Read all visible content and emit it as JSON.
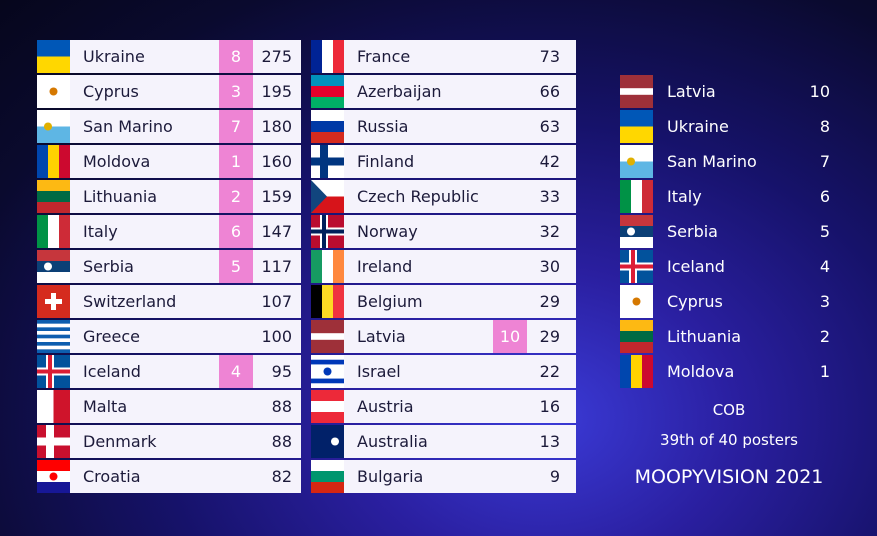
{
  "scoreboard": {
    "left": [
      {
        "country": "Ukraine",
        "points": 8,
        "total": 275
      },
      {
        "country": "Cyprus",
        "points": 3,
        "total": 195
      },
      {
        "country": "San Marino",
        "points": 7,
        "total": 180
      },
      {
        "country": "Moldova",
        "points": 1,
        "total": 160
      },
      {
        "country": "Lithuania",
        "points": 2,
        "total": 159
      },
      {
        "country": "Italy",
        "points": 6,
        "total": 147
      },
      {
        "country": "Serbia",
        "points": 5,
        "total": 117
      },
      {
        "country": "Switzerland",
        "total": 107
      },
      {
        "country": "Greece",
        "total": 100
      },
      {
        "country": "Iceland",
        "points": 4,
        "total": 95
      },
      {
        "country": "Malta",
        "total": 88
      },
      {
        "country": "Denmark",
        "total": 88
      },
      {
        "country": "Croatia",
        "total": 82
      }
    ],
    "middle": [
      {
        "country": "France",
        "total": 73
      },
      {
        "country": "Azerbaijan",
        "total": 66
      },
      {
        "country": "Russia",
        "total": 63
      },
      {
        "country": "Finland",
        "total": 42
      },
      {
        "country": "Czech Republic",
        "total": 33
      },
      {
        "country": "Norway",
        "total": 32
      },
      {
        "country": "Ireland",
        "total": 30
      },
      {
        "country": "Belgium",
        "total": 29
      },
      {
        "country": "Latvia",
        "points": 10,
        "total": 29
      },
      {
        "country": "Israel",
        "total": 22
      },
      {
        "country": "Austria",
        "total": 16
      },
      {
        "country": "Australia",
        "total": 13
      },
      {
        "country": "Bulgaria",
        "total": 9
      }
    ]
  },
  "votes": {
    "given": [
      {
        "country": "Latvia",
        "points": 10
      },
      {
        "country": "Ukraine",
        "points": 8
      },
      {
        "country": "San Marino",
        "points": 7
      },
      {
        "country": "Italy",
        "points": 6
      },
      {
        "country": "Serbia",
        "points": 5
      },
      {
        "country": "Iceland",
        "points": 4
      },
      {
        "country": "Cyprus",
        "points": 3
      },
      {
        "country": "Lithuania",
        "points": 2
      },
      {
        "country": "Moldova",
        "points": 1
      }
    ],
    "voter": "COB",
    "position": "39th of 40 posters",
    "show": "MOOPYVISION 2021"
  }
}
